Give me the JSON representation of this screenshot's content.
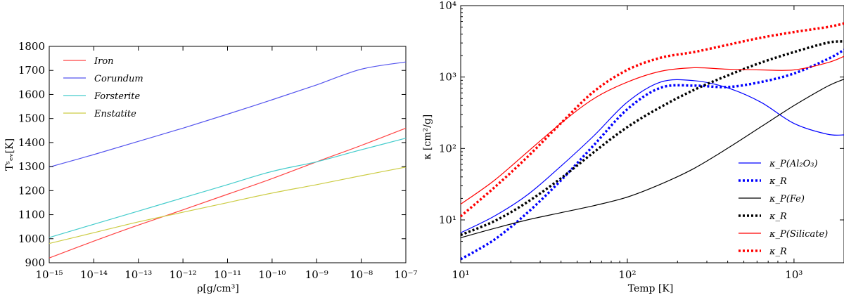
{
  "chart_data": [
    {
      "type": "line",
      "title": "",
      "xlabel": "ρ[g/cm³]",
      "ylabel": "Tˢₑᵥ[K]",
      "xscale": "log",
      "xlim": [
        -15,
        -7
      ],
      "ylim": [
        900,
        1800
      ],
      "x_ticks": [
        -15,
        -14,
        -13,
        -12,
        -11,
        -10,
        -9,
        -8,
        -7
      ],
      "x_tick_labels": [
        "10⁻¹⁵",
        "10⁻¹⁴",
        "10⁻¹³",
        "10⁻¹²",
        "10⁻¹¹",
        "10⁻¹⁰",
        "10⁻⁹",
        "10⁻⁸",
        "10⁻⁷"
      ],
      "y_ticks": [
        900,
        1000,
        1100,
        1200,
        1300,
        1400,
        1500,
        1600,
        1700,
        1800
      ],
      "y_tick_labels": [
        "900",
        "1000",
        "1100",
        "1200",
        "1300",
        "1400",
        "1500",
        "1600",
        "1700",
        "1800"
      ],
      "legend_position": "top-left",
      "x": [
        -15,
        -14,
        -13,
        -12,
        -11,
        -10,
        -9,
        -8,
        -7
      ],
      "series": [
        {
          "name": "Iron",
          "color": "#ff4444",
          "values": [
            920,
            990,
            1057,
            1120,
            1185,
            1250,
            1320,
            1388,
            1460
          ]
        },
        {
          "name": "Corundum",
          "color": "#5555ee",
          "values": [
            1298,
            1350,
            1405,
            1460,
            1518,
            1578,
            1640,
            1705,
            1735
          ]
        },
        {
          "name": "Forsterite",
          "color": "#44cccc",
          "values": [
            1005,
            1060,
            1115,
            1170,
            1225,
            1280,
            1320,
            1370,
            1418
          ]
        },
        {
          "name": "Enstatite",
          "color": "#cccc44",
          "values": [
            980,
            1025,
            1070,
            1110,
            1150,
            1190,
            1225,
            1262,
            1298
          ]
        }
      ]
    },
    {
      "type": "line",
      "title": "",
      "xlabel": "Temp [K]",
      "ylabel": "κ [cm²/g]",
      "xscale": "log",
      "yscale": "log",
      "xlim": [
        1,
        3.3
      ],
      "ylim": [
        0.4,
        4
      ],
      "x_ticks": [
        1,
        2,
        3
      ],
      "x_tick_labels": [
        "10¹",
        "10²",
        "10³"
      ],
      "y_ticks": [
        1,
        2,
        3,
        4
      ],
      "y_tick_labels": [
        "10¹",
        "10²",
        "10³",
        "10⁴"
      ],
      "legend_position": "bottom-right",
      "x": [
        1.0,
        1.2,
        1.4,
        1.6,
        1.8,
        2.0,
        2.2,
        2.4,
        2.6,
        2.8,
        3.0,
        3.2,
        3.3
      ],
      "series": [
        {
          "name": "κ_P(Al₂O₃)",
          "color": "#0000ff",
          "dash": "solid",
          "values": [
            0.82,
            1.05,
            1.35,
            1.75,
            2.18,
            2.65,
            2.93,
            2.95,
            2.85,
            2.65,
            2.35,
            2.2,
            2.19
          ]
        },
        {
          "name": "κ_R",
          "color": "#0000ff",
          "dash": "dotted",
          "values": [
            0.45,
            0.72,
            1.1,
            1.55,
            2.05,
            2.55,
            2.85,
            2.88,
            2.86,
            2.93,
            3.05,
            3.25,
            3.38
          ]
        },
        {
          "name": "κ_P(Fe)",
          "color": "#000000",
          "dash": "solid",
          "values": [
            0.75,
            0.88,
            1.0,
            1.1,
            1.2,
            1.32,
            1.5,
            1.72,
            2.0,
            2.3,
            2.6,
            2.87,
            2.97
          ]
        },
        {
          "name": "κ_R",
          "color": "#000000",
          "dash": "dotted",
          "values": [
            0.79,
            0.98,
            1.25,
            1.58,
            1.95,
            2.3,
            2.58,
            2.82,
            3.02,
            3.2,
            3.35,
            3.48,
            3.5
          ]
        },
        {
          "name": "κ_P(Silicate)",
          "color": "#ff0000",
          "dash": "solid",
          "values": [
            1.22,
            1.55,
            1.95,
            2.35,
            2.7,
            2.93,
            3.08,
            3.13,
            3.11,
            3.1,
            3.1,
            3.2,
            3.29
          ]
        },
        {
          "name": "κ_R",
          "color": "#ff0000",
          "dash": "dotted",
          "values": [
            1.05,
            1.45,
            1.88,
            2.35,
            2.8,
            3.1,
            3.27,
            3.35,
            3.45,
            3.55,
            3.63,
            3.7,
            3.75
          ]
        }
      ]
    }
  ]
}
